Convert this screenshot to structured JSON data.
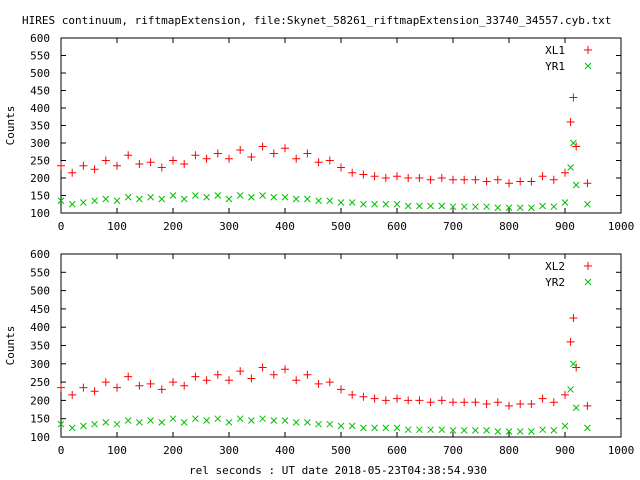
{
  "title": "HIRES continuum, riftmapExtension, file:Skynet_58261_riftmapExtension_33740_34557.cyb.txt",
  "xlabel": "rel seconds : UT date 2018-05-23T04:38:54.930",
  "colors": {
    "red": "#ff0000",
    "green": "#00c000",
    "axis": "#000000"
  },
  "chart_data": [
    {
      "type": "scatter",
      "ylabel": "Counts",
      "xlim": [
        0,
        1000
      ],
      "ylim": [
        100,
        600
      ],
      "xticks": [
        0,
        100,
        200,
        300,
        400,
        500,
        600,
        700,
        800,
        900,
        1000
      ],
      "yticks": [
        100,
        150,
        200,
        250,
        300,
        350,
        400,
        450,
        500,
        550,
        600
      ],
      "legend_position": "top-right",
      "series": [
        {
          "name": "XL1",
          "marker": "+",
          "color": "#ff0000",
          "x": [
            0,
            20,
            40,
            60,
            80,
            100,
            120,
            140,
            160,
            180,
            200,
            220,
            240,
            260,
            280,
            300,
            320,
            340,
            360,
            380,
            400,
            420,
            440,
            460,
            480,
            500,
            520,
            540,
            560,
            580,
            600,
            620,
            640,
            660,
            680,
            700,
            720,
            740,
            760,
            780,
            800,
            820,
            840,
            860,
            880,
            900,
            910,
            915,
            920,
            940
          ],
          "y": [
            235,
            215,
            235,
            225,
            250,
            235,
            265,
            240,
            245,
            230,
            250,
            240,
            265,
            255,
            270,
            255,
            280,
            260,
            290,
            270,
            285,
            255,
            270,
            245,
            250,
            230,
            215,
            210,
            205,
            200,
            205,
            200,
            200,
            195,
            200,
            195,
            195,
            195,
            190,
            195,
            185,
            190,
            190,
            205,
            195,
            215,
            360,
            430,
            290,
            185
          ]
        },
        {
          "name": "YR1",
          "marker": "x",
          "color": "#00c000",
          "x": [
            0,
            20,
            40,
            60,
            80,
            100,
            120,
            140,
            160,
            180,
            200,
            220,
            240,
            260,
            280,
            300,
            320,
            340,
            360,
            380,
            400,
            420,
            440,
            460,
            480,
            500,
            520,
            540,
            560,
            580,
            600,
            620,
            640,
            660,
            680,
            700,
            720,
            740,
            760,
            780,
            800,
            820,
            840,
            860,
            880,
            900,
            910,
            915,
            920,
            940
          ],
          "y": [
            135,
            125,
            130,
            135,
            140,
            135,
            145,
            140,
            145,
            140,
            150,
            140,
            150,
            145,
            150,
            140,
            150,
            145,
            150,
            145,
            145,
            140,
            140,
            135,
            135,
            130,
            130,
            125,
            125,
            125,
            125,
            120,
            120,
            120,
            120,
            118,
            118,
            118,
            118,
            115,
            115,
            115,
            115,
            120,
            118,
            130,
            230,
            300,
            180,
            125
          ]
        }
      ]
    },
    {
      "type": "scatter",
      "ylabel": "Counts",
      "xlim": [
        0,
        1000
      ],
      "ylim": [
        100,
        600
      ],
      "xticks": [
        0,
        100,
        200,
        300,
        400,
        500,
        600,
        700,
        800,
        900,
        1000
      ],
      "yticks": [
        100,
        150,
        200,
        250,
        300,
        350,
        400,
        450,
        500,
        550,
        600
      ],
      "legend_position": "top-right",
      "series": [
        {
          "name": "XL2",
          "marker": "+",
          "color": "#ff0000",
          "x": [
            0,
            20,
            40,
            60,
            80,
            100,
            120,
            140,
            160,
            180,
            200,
            220,
            240,
            260,
            280,
            300,
            320,
            340,
            360,
            380,
            400,
            420,
            440,
            460,
            480,
            500,
            520,
            540,
            560,
            580,
            600,
            620,
            640,
            660,
            680,
            700,
            720,
            740,
            760,
            780,
            800,
            820,
            840,
            860,
            880,
            900,
            910,
            915,
            920,
            940
          ],
          "y": [
            235,
            215,
            235,
            225,
            250,
            235,
            265,
            240,
            245,
            230,
            250,
            240,
            265,
            255,
            270,
            255,
            280,
            260,
            290,
            270,
            285,
            255,
            270,
            245,
            250,
            230,
            215,
            210,
            205,
            200,
            205,
            200,
            200,
            195,
            200,
            195,
            195,
            195,
            190,
            195,
            185,
            190,
            190,
            205,
            195,
            215,
            360,
            425,
            290,
            185
          ]
        },
        {
          "name": "YR2",
          "marker": "x",
          "color": "#00c000",
          "x": [
            0,
            20,
            40,
            60,
            80,
            100,
            120,
            140,
            160,
            180,
            200,
            220,
            240,
            260,
            280,
            300,
            320,
            340,
            360,
            380,
            400,
            420,
            440,
            460,
            480,
            500,
            520,
            540,
            560,
            580,
            600,
            620,
            640,
            660,
            680,
            700,
            720,
            740,
            760,
            780,
            800,
            820,
            840,
            860,
            880,
            900,
            910,
            915,
            920,
            940
          ],
          "y": [
            135,
            125,
            130,
            135,
            140,
            135,
            145,
            140,
            145,
            140,
            150,
            140,
            150,
            145,
            150,
            140,
            150,
            145,
            150,
            145,
            145,
            140,
            140,
            135,
            135,
            130,
            130,
            125,
            125,
            125,
            125,
            120,
            120,
            120,
            120,
            118,
            118,
            118,
            118,
            115,
            115,
            115,
            115,
            120,
            118,
            130,
            230,
            300,
            180,
            125
          ]
        }
      ]
    }
  ]
}
